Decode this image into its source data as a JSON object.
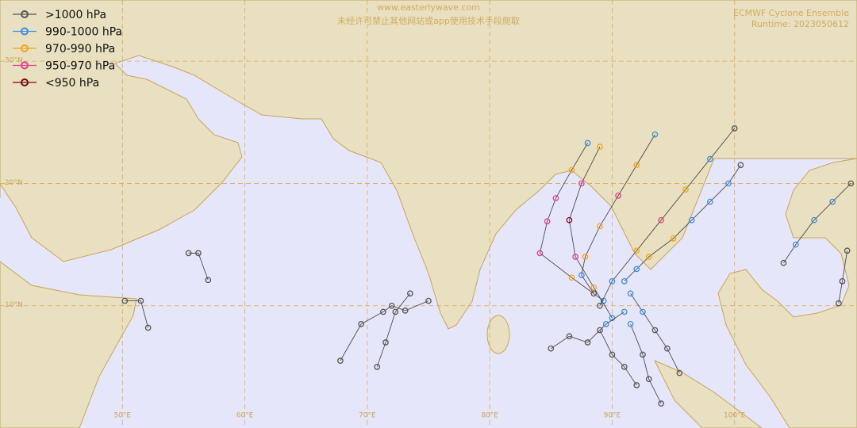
{
  "header": {
    "watermark_url": "www.easterlywave.com",
    "watermark_notice": "未经许可禁止其他网站或app使用技术手段爬取",
    "title": "ECMWF Cyclone Ensemble",
    "runtime": "Runtime: 2023050612"
  },
  "legend": [
    {
      "label": ">1000 hPa",
      "color": "#555555"
    },
    {
      "label": "990-1000 hPa",
      "color": "#3a8ee6"
    },
    {
      "label": "970-990 hPa",
      "color": "#f2a51a"
    },
    {
      "label": "950-970 hPa",
      "color": "#e0408a"
    },
    {
      "label": "<950 hPa",
      "color": "#7a0b14"
    }
  ],
  "map": {
    "lon_range": [
      40,
      110
    ],
    "lat_range": [
      0,
      35
    ],
    "lon_ticks": [
      {
        "value": 50,
        "label": "50°E"
      },
      {
        "value": 60,
        "label": "60°E"
      },
      {
        "value": 70,
        "label": "70°E"
      },
      {
        "value": 80,
        "label": "80°E"
      },
      {
        "value": 90,
        "label": "90°E"
      },
      {
        "value": 100,
        "label": "100°E"
      }
    ],
    "lat_ticks": [
      {
        "value": 10,
        "label": "10°N"
      },
      {
        "value": 20,
        "label": "20°N"
      },
      {
        "value": 30,
        "label": "30°N"
      }
    ]
  },
  "tracks": [
    {
      "lon": [
        50.2,
        51.5,
        52.1
      ],
      "lat": [
        10.4,
        10.4,
        8.2
      ],
      "class": [
        ">1000 hPa",
        ">1000 hPa",
        ">1000 hPa"
      ]
    },
    {
      "lon": [
        55.4,
        56.2,
        57.0
      ],
      "lat": [
        14.3,
        14.3,
        12.1
      ],
      "class": [
        ">1000 hPa",
        ">1000 hPa",
        ">1000 hPa"
      ]
    },
    {
      "lon": [
        67.8,
        69.5,
        71.3,
        72.0,
        73.1,
        75.0
      ],
      "lat": [
        5.5,
        8.5,
        9.5,
        10.0,
        9.6,
        10.4
      ],
      "class": [
        ">1000 hPa",
        ">1000 hPa",
        ">1000 hPa",
        ">1000 hPa",
        ">1000 hPa",
        ">1000 hPa"
      ]
    },
    {
      "lon": [
        70.8,
        71.5,
        72.3,
        73.5
      ],
      "lat": [
        5.0,
        7.0,
        9.5,
        11.0
      ],
      "class": [
        ">1000 hPa",
        ">1000 hPa",
        ">1000 hPa",
        ">1000 hPa"
      ]
    },
    {
      "lon": [
        89.3,
        86.7,
        84.1,
        84.7,
        85.4,
        86.7,
        88.0
      ],
      "lat": [
        10.4,
        12.3,
        14.3,
        16.9,
        18.8,
        21.1,
        23.3
      ],
      "class": [
        "990-1000 hPa",
        "970-990 hPa",
        "950-970 hPa",
        "950-970 hPa",
        "950-970 hPa",
        "970-990 hPa",
        "990-1000 hPa"
      ]
    },
    {
      "lon": [
        88.5,
        87.5,
        87.8,
        89.0,
        90.5,
        92.0,
        93.5
      ],
      "lat": [
        11.0,
        12.5,
        14.0,
        16.5,
        19.0,
        21.5,
        24.0
      ],
      "class": [
        ">1000 hPa",
        "990-1000 hPa",
        "970-990 hPa",
        "970-990 hPa",
        "950-970 hPa",
        "970-990 hPa",
        "990-1000 hPa"
      ]
    },
    {
      "lon": [
        91,
        92,
        93,
        95,
        96.5,
        98,
        99.5,
        100.5
      ],
      "lat": [
        12,
        13,
        14,
        15.5,
        17,
        18.5,
        20,
        21.5
      ],
      "class": [
        "990-1000 hPa",
        "990-1000 hPa",
        "970-990 hPa",
        "970-990 hPa",
        "990-1000 hPa",
        "990-1000 hPa",
        "990-1000 hPa",
        ">1000 hPa"
      ]
    },
    {
      "lon": [
        89,
        90,
        92,
        94,
        96,
        98,
        100
      ],
      "lat": [
        10,
        12,
        14.5,
        17,
        19.5,
        22,
        24.5
      ],
      "class": [
        ">1000 hPa",
        "990-1000 hPa",
        "970-990 hPa",
        "950-970 hPa",
        "970-990 hPa",
        "990-1000 hPa",
        ">1000 hPa"
      ]
    },
    {
      "lon": [
        90,
        88.5,
        87,
        86.5,
        87.5,
        89
      ],
      "lat": [
        9,
        11.5,
        14,
        17,
        20,
        23
      ],
      "class": [
        "990-1000 hPa",
        "970-990 hPa",
        "950-970 hPa",
        "<950 hPa",
        "950-970 hPa",
        "970-990 hPa"
      ]
    },
    {
      "lon": [
        85,
        86.5,
        88,
        89.5,
        91
      ],
      "lat": [
        6.5,
        7.5,
        7,
        8.5,
        9.5
      ],
      "class": [
        ">1000 hPa",
        ">1000 hPa",
        ">1000 hPa",
        "990-1000 hPa",
        "990-1000 hPa"
      ]
    },
    {
      "lon": [
        92,
        91,
        90,
        89
      ],
      "lat": [
        3.5,
        5,
        6,
        8
      ],
      "class": [
        ">1000 hPa",
        ">1000 hPa",
        ">1000 hPa",
        ">1000 hPa"
      ]
    },
    {
      "lon": [
        94,
        93,
        92.5,
        91.5
      ],
      "lat": [
        2,
        4,
        6,
        8.5
      ],
      "class": [
        ">1000 hPa",
        ">1000 hPa",
        ">1000 hPa",
        "990-1000 hPa"
      ]
    },
    {
      "lon": [
        95.5,
        94.5,
        93.5,
        92.5,
        91.5
      ],
      "lat": [
        4.5,
        6.5,
        8,
        9.5,
        11
      ],
      "class": [
        ">1000 hPa",
        ">1000 hPa",
        ">1000 hPa",
        "990-1000 hPa",
        "990-1000 hPa"
      ]
    },
    {
      "lon": [
        104,
        105,
        106.5,
        108,
        109.5
      ],
      "lat": [
        13.5,
        15,
        17,
        18.5,
        20
      ],
      "class": [
        ">1000 hPa",
        "990-1000 hPa",
        "990-1000 hPa",
        "990-1000 hPa",
        ">1000 hPa"
      ]
    },
    {
      "lon": [
        108.5,
        108.8,
        109.2
      ],
      "lat": [
        10.2,
        12,
        14.5
      ],
      "class": [
        ">1000 hPa",
        ">1000 hPa",
        ">1000 hPa"
      ]
    }
  ]
}
